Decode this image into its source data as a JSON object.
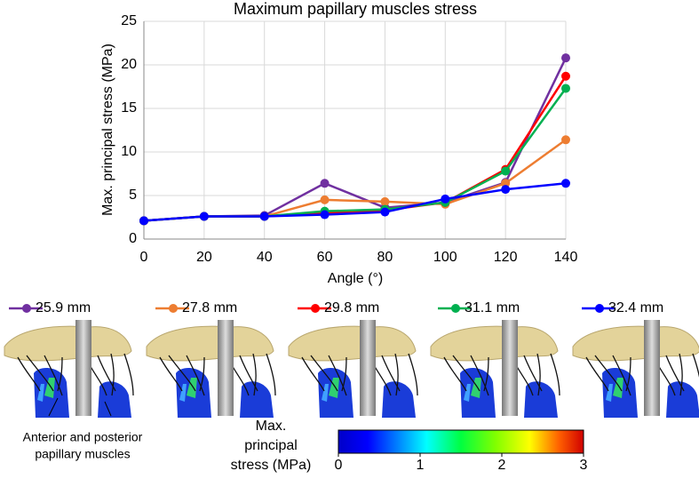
{
  "chart_data": {
    "type": "line",
    "title": "Maximum papillary muscles stress",
    "xlabel": "Angle (°)",
    "ylabel": "Max. principal stress (MPa)",
    "x": [
      0,
      20,
      40,
      60,
      80,
      100,
      120,
      140
    ],
    "xlim": [
      0,
      140
    ],
    "xticks": [
      0,
      20,
      40,
      60,
      80,
      100,
      120,
      140
    ],
    "ylim": [
      0,
      25
    ],
    "yticks": [
      0,
      5,
      10,
      15,
      20,
      25
    ],
    "grid": true,
    "legend": "bottom",
    "series": [
      {
        "name": "25.9 mm",
        "color": "#7030a0",
        "values": [
          2.1,
          2.6,
          2.7,
          6.4,
          3.6,
          4.2,
          6.5,
          20.8
        ]
      },
      {
        "name": "27.8 mm",
        "color": "#ed7d31",
        "values": [
          2.1,
          2.6,
          2.6,
          4.5,
          4.3,
          4.0,
          6.4,
          11.4
        ]
      },
      {
        "name": "29.8 mm",
        "color": "#ff0000",
        "values": [
          2.1,
          2.6,
          2.6,
          3.0,
          3.3,
          4.2,
          8.0,
          18.7
        ]
      },
      {
        "name": "31.1 mm",
        "color": "#00b050",
        "values": [
          2.1,
          2.6,
          2.6,
          3.2,
          3.4,
          4.2,
          7.8,
          17.3
        ]
      },
      {
        "name": "32.4 mm",
        "color": "#0000ff",
        "values": [
          2.1,
          2.6,
          2.6,
          2.8,
          3.1,
          4.6,
          5.7,
          6.4
        ]
      }
    ]
  },
  "annotation": [
    "Anterior and posterior",
    "papillary muscles"
  ],
  "colorbar": {
    "label": [
      "Max.",
      "principal",
      "stress (MPa)"
    ],
    "lim": [
      0,
      3
    ],
    "ticks": [
      0,
      1,
      2,
      3
    ]
  }
}
